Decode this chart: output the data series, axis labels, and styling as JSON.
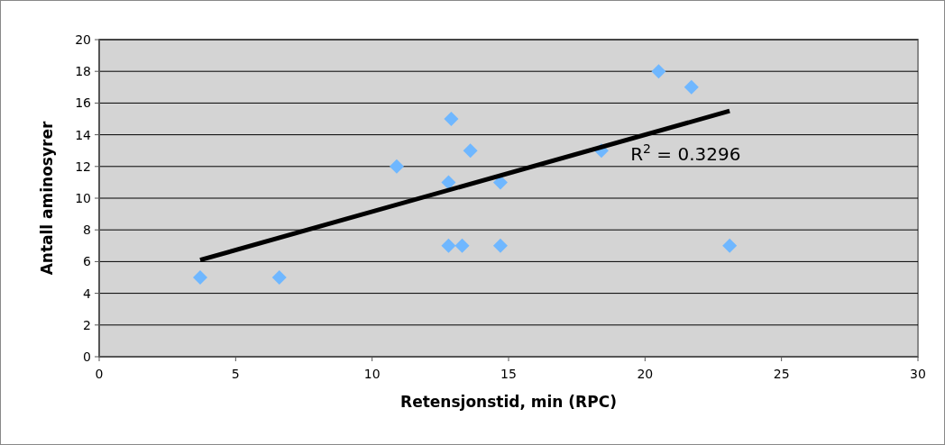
{
  "chart_data": {
    "type": "scatter",
    "xlabel": "Retensjonstid, min (RPC)",
    "ylabel": "Antall aminosyrer",
    "xlim": [
      0,
      30
    ],
    "xticks": [
      0,
      5,
      10,
      15,
      20,
      25,
      30
    ],
    "ylim": [
      0,
      20
    ],
    "yticks": [
      0,
      2,
      4,
      6,
      8,
      10,
      12,
      14,
      16,
      18,
      20
    ],
    "grid": "y",
    "series": [
      {
        "marker": "diamond",
        "color": "#6fb7ff",
        "x": [
          3.7,
          6.6,
          10.9,
          12.9,
          12.8,
          13.6,
          12.8,
          13.3,
          14.7,
          14.7,
          18.4,
          20.5,
          21.7,
          23.1
        ],
        "values": [
          5,
          5,
          12,
          15,
          11,
          13,
          7,
          7,
          11,
          7,
          13,
          18,
          17,
          7
        ]
      },
      {
        "type": "line",
        "color": "#000000",
        "x": [
          3.7,
          23.1
        ],
        "values": [
          6.1,
          15.5
        ]
      }
    ],
    "annotations": [
      "R$^{2}$ = 0.3296"
    ]
  }
}
